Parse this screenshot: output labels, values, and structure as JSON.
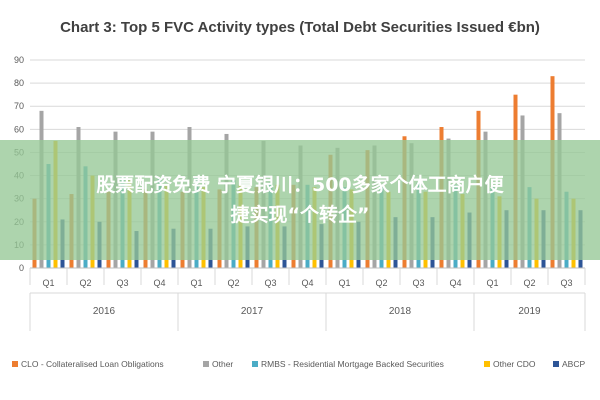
{
  "overlay": {
    "line1": "股票配资免费 宁夏银川：500多家个体工商户便",
    "line2": "捷实现“个转企”"
  },
  "chart_data": {
    "type": "bar",
    "title": "Chart 3: Top 5 FVC Activity types (Total Debt Securities Issued €bn)",
    "xlabel": "",
    "ylabel": "",
    "ylim": [
      0,
      90
    ],
    "yticks": [
      0,
      10,
      20,
      30,
      40,
      50,
      60,
      70,
      80,
      90
    ],
    "grid": true,
    "legend_position": "bottom",
    "categories": [
      "Q1",
      "Q2",
      "Q3",
      "Q4",
      "Q1",
      "Q2",
      "Q3",
      "Q4",
      "Q1",
      "Q2",
      "Q3",
      "Q4",
      "Q1",
      "Q2",
      "Q3"
    ],
    "years": [
      {
        "label": "2016",
        "count": 4
      },
      {
        "label": "2017",
        "count": 4
      },
      {
        "label": "2018",
        "count": 4
      },
      {
        "label": "2019",
        "count": 3
      }
    ],
    "series": [
      {
        "name": "CLO - Collateralised Loan Obligations",
        "color": "#ED7D31",
        "values": [
          30,
          32,
          33,
          34,
          33,
          34,
          35,
          36,
          49,
          51,
          57,
          61,
          68,
          75,
          83
        ]
      },
      {
        "name": "Other",
        "color": "#A5A5A5",
        "values": [
          68,
          61,
          59,
          59,
          61,
          58,
          55,
          53,
          52,
          53,
          54,
          56,
          59,
          66,
          67
        ]
      },
      {
        "name": "RMBS - Residential Mortgage Backed Securities",
        "color": "#4BACC6",
        "values": [
          45,
          44,
          40,
          39,
          39,
          38,
          37,
          36,
          35,
          36,
          37,
          36,
          35,
          35,
          33
        ]
      },
      {
        "name": "Other CDO",
        "color": "#FFC000",
        "values": [
          55,
          40,
          38,
          36,
          35,
          36,
          36,
          35,
          34,
          33,
          33,
          32,
          31,
          30,
          30
        ]
      },
      {
        "name": "ABCP",
        "color": "#2E5597",
        "values": [
          21,
          20,
          16,
          17,
          17,
          18,
          18,
          19,
          20,
          22,
          22,
          24,
          25,
          25,
          25
        ]
      }
    ]
  }
}
